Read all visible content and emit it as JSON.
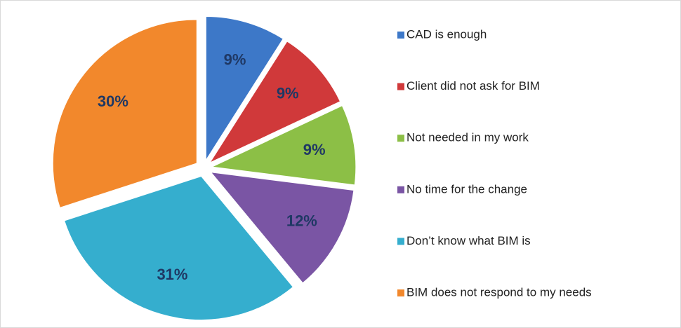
{
  "chart_data": {
    "type": "pie",
    "categories": [
      "CAD is enough",
      "Client did not ask for BIM",
      "Not needed in my work",
      "No time for the change",
      "Don’t know what BIM is",
      "BIM does not respond to my needs"
    ],
    "values": [
      9,
      9,
      9,
      12,
      31,
      30
    ],
    "value_labels": [
      "9%",
      "9%",
      "9%",
      "12%",
      "31%",
      "30%"
    ],
    "colors": [
      "#3d78c8",
      "#d0393a",
      "#8cbf46",
      "#7a55a4",
      "#35aece",
      "#f2882c"
    ],
    "legend": "right"
  }
}
